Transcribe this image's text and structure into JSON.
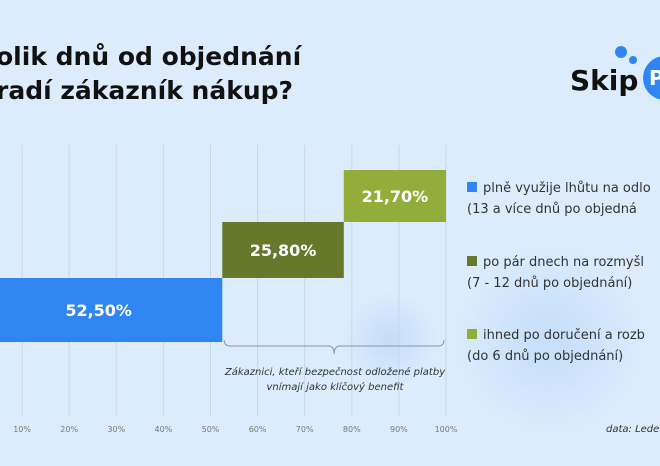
{
  "title": "olik dnů od objednání\nradí zákazník nákup?",
  "logo_text": "Skip",
  "logo_badge": "P",
  "chart_data": {
    "type": "bar",
    "subtype": "stacked-waterfall-horizontal",
    "xlim": [
      0,
      100
    ],
    "x_ticks": [
      "10%",
      "20%",
      "30%",
      "40%",
      "50%",
      "60%",
      "70%",
      "80%",
      "90%",
      "100%"
    ],
    "series": [
      {
        "name": "plně využije lhůtu na odlo",
        "detail": "(13 a více dnů po objedná",
        "value": 52.5,
        "label": "52,50%",
        "color": "#2f86f3"
      },
      {
        "name": "po pár dnech na rozmyšl",
        "detail": "(7 - 12 dnů po objednání)",
        "value": 25.8,
        "label": "25,80%",
        "color": "#66782b"
      },
      {
        "name": "ihned po doručení a rozb",
        "detail": "(do 6 dnů po objednání)",
        "value": 21.7,
        "label": "21,70%",
        "color": "#93ad3b"
      }
    ],
    "annotation": "Zákaznici, kteří bezpečnost odložené platby vnímají jako klíčový benefit",
    "legend_position": "right",
    "grid": true
  },
  "source": "data: Lede"
}
